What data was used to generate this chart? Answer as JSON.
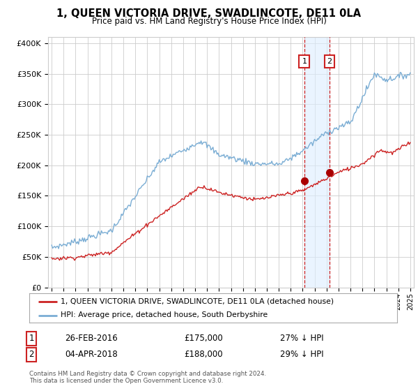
{
  "title": "1, QUEEN VICTORIA DRIVE, SWADLINCOTE, DE11 0LA",
  "subtitle": "Price paid vs. HM Land Registry's House Price Index (HPI)",
  "legend_line1": "1, QUEEN VICTORIA DRIVE, SWADLINCOTE, DE11 0LA (detached house)",
  "legend_line2": "HPI: Average price, detached house, South Derbyshire",
  "footnote": "Contains HM Land Registry data © Crown copyright and database right 2024.\nThis data is licensed under the Open Government Licence v3.0.",
  "transaction1_label": "1",
  "transaction1_date": "26-FEB-2016",
  "transaction1_price": "£175,000",
  "transaction1_hpi": "27% ↓ HPI",
  "transaction1_year": 2016.14,
  "transaction1_value": 175000,
  "transaction2_label": "2",
  "transaction2_date": "04-APR-2018",
  "transaction2_price": "£188,000",
  "transaction2_hpi": "29% ↓ HPI",
  "transaction2_year": 2018.25,
  "transaction2_value": 188000,
  "hpi_color": "#7aadd4",
  "price_color": "#cc2222",
  "marker_color": "#aa0000",
  "shade_color": "#ddeeff",
  "vline_color": "#cc2222",
  "ylim": [
    0,
    410000
  ],
  "yticks": [
    0,
    50000,
    100000,
    150000,
    200000,
    250000,
    300000,
    350000,
    400000
  ],
  "xlim_start": 1994.7,
  "xlim_end": 2025.3,
  "background_color": "#ffffff",
  "grid_color": "#cccccc",
  "legend_border_color": "#aaaaaa",
  "box_label_color": "#cc2222"
}
